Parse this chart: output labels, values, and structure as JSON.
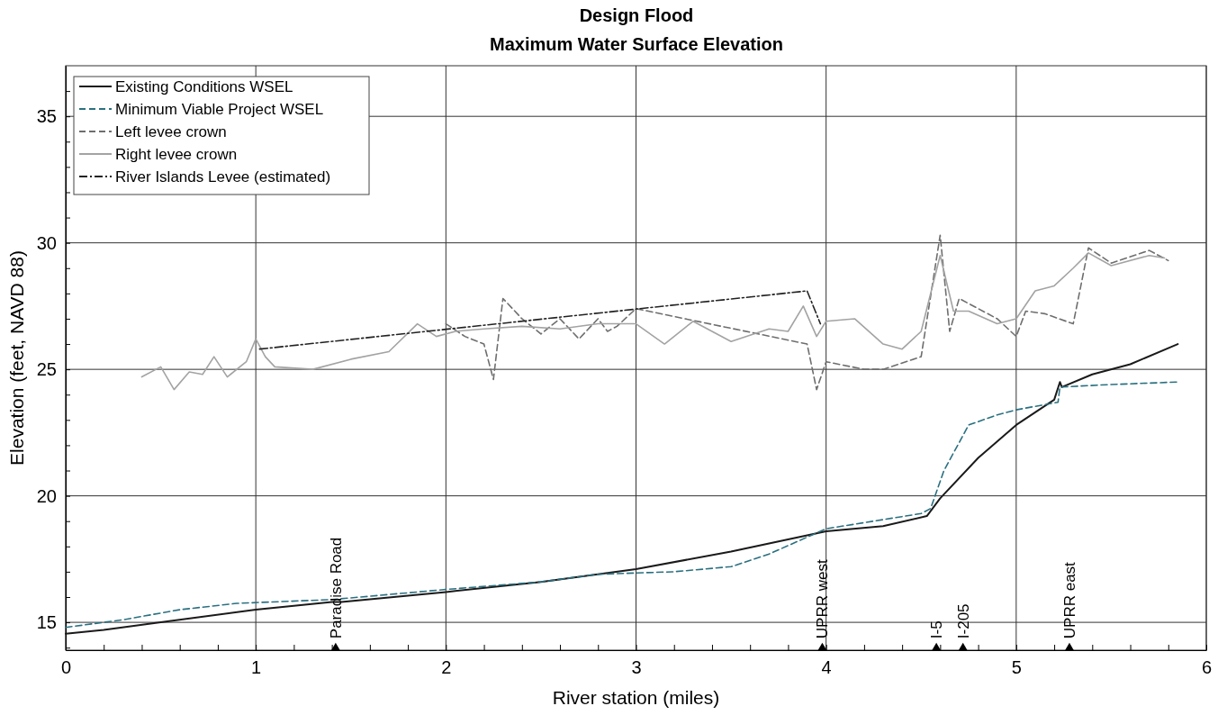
{
  "chart_data": {
    "type": "line",
    "title": "Design Flood",
    "subtitle": "Maximum Water Surface Elevation",
    "xlabel": "River station (miles)",
    "ylabel": "Elevation (feet, NAVD 88)",
    "xlim": [
      0,
      6
    ],
    "ylim": [
      13.9,
      37
    ],
    "xticks": [
      0,
      {
        "value": 0.2,
        "label": null
      },
      {
        "value": 0.4,
        "label": null
      },
      {
        "value": 0.6,
        "label": null
      },
      {
        "value": 0.8,
        "label": null
      },
      1,
      {
        "value": 1.2,
        "label": null
      },
      {
        "value": 1.4,
        "label": null
      },
      {
        "value": 1.6,
        "label": null
      },
      {
        "value": 1.8,
        "label": null
      },
      2,
      {
        "value": 2.2,
        "label": null
      },
      {
        "value": 2.4,
        "label": null
      },
      {
        "value": 2.6,
        "label": null
      },
      {
        "value": 2.8,
        "label": null
      },
      3,
      {
        "value": 3.2,
        "label": null
      },
      {
        "value": 3.4,
        "label": null
      },
      {
        "value": 3.6,
        "label": null
      },
      {
        "value": 3.8,
        "label": null
      },
      4,
      {
        "value": 4.2,
        "label": null
      },
      {
        "value": 4.4,
        "label": null
      },
      {
        "value": 4.6,
        "label": null
      },
      {
        "value": 4.8,
        "label": null
      },
      5,
      {
        "value": 5.2,
        "label": null
      },
      {
        "value": 5.4,
        "label": null
      },
      {
        "value": 5.6,
        "label": null
      },
      {
        "value": 5.8,
        "label": null
      },
      6
    ],
    "yticks": [
      {
        "value": 14,
        "label": null
      },
      15,
      {
        "value": 16,
        "label": null
      },
      {
        "value": 17,
        "label": null
      },
      {
        "value": 18,
        "label": null
      },
      {
        "value": 19,
        "label": null
      },
      20,
      {
        "value": 21,
        "label": null
      },
      {
        "value": 22,
        "label": null
      },
      {
        "value": 23,
        "label": null
      },
      {
        "value": 24,
        "label": null
      },
      25,
      {
        "value": 26,
        "label": null
      },
      {
        "value": 27,
        "label": null
      },
      {
        "value": 28,
        "label": null
      },
      {
        "value": 29,
        "label": null
      },
      30,
      {
        "value": 31,
        "label": null
      },
      {
        "value": 32,
        "label": null
      },
      {
        "value": 33,
        "label": null
      },
      {
        "value": 34,
        "label": null
      },
      35,
      {
        "value": 36,
        "label": null
      }
    ],
    "grid": true,
    "legend": "top left",
    "marker": "none",
    "series": [
      {
        "name": "Existing Conditions WSEL",
        "color": "#1a1a1a",
        "line_style": "solid",
        "x": [
          0,
          0.2,
          0.5,
          1.0,
          1.4,
          1.45,
          2.0,
          2.5,
          3.0,
          3.5,
          4.0,
          4.3,
          4.53,
          4.6,
          4.8,
          5.0,
          5.2,
          5.23,
          5.24,
          5.4,
          5.6,
          5.85
        ],
        "values": [
          14.55,
          14.7,
          15.0,
          15.5,
          15.8,
          15.8,
          16.2,
          16.6,
          17.1,
          17.8,
          18.6,
          18.8,
          19.2,
          19.9,
          21.5,
          22.8,
          23.8,
          24.5,
          24.3,
          24.8,
          25.2,
          26.0
        ]
      },
      {
        "name": "Minimum Viable Project WSEL",
        "color": "#2a7080",
        "line_style": "dashed",
        "x": [
          0,
          0.3,
          0.6,
          0.9,
          1.4,
          2.0,
          2.5,
          2.8,
          3.2,
          3.5,
          3.7,
          4.0,
          4.5,
          4.55,
          4.62,
          4.75,
          4.9,
          5.0,
          5.22,
          5.23,
          5.5,
          5.85
        ],
        "values": [
          14.8,
          15.1,
          15.5,
          15.75,
          15.9,
          16.3,
          16.6,
          16.9,
          17.0,
          17.2,
          17.7,
          18.7,
          19.3,
          19.5,
          21.0,
          22.8,
          23.2,
          23.4,
          23.7,
          24.3,
          24.4,
          24.5
        ]
      },
      {
        "name": "Left levee crown",
        "color": "#6e6e6e",
        "line_style": "dashed",
        "x": [
          2.0,
          2.1,
          2.2,
          2.25,
          2.3,
          2.4,
          2.5,
          2.6,
          2.7,
          2.8,
          2.85,
          2.9,
          3.0,
          3.9,
          3.95,
          4.0,
          4.2,
          4.3,
          4.5,
          4.6,
          4.65,
          4.7,
          4.9,
          5.0,
          5.05,
          5.15,
          5.3,
          5.38,
          5.5,
          5.7,
          5.8
        ],
        "values": [
          26.8,
          26.3,
          26.0,
          24.6,
          27.8,
          27.0,
          26.4,
          27.0,
          26.2,
          27.0,
          26.5,
          26.7,
          27.4,
          26.0,
          24.2,
          25.3,
          25.0,
          25.0,
          25.5,
          30.3,
          26.5,
          27.8,
          27.0,
          26.3,
          27.3,
          27.2,
          26.8,
          29.8,
          29.2,
          29.7,
          29.3
        ]
      },
      {
        "name": "Right levee crown",
        "color": "#a3a3a3",
        "line_style": "solid",
        "x": [
          0.4,
          0.5,
          0.57,
          0.65,
          0.72,
          0.78,
          0.85,
          0.95,
          1.0,
          1.05,
          1.1,
          1.3,
          1.5,
          1.7,
          1.85,
          1.95,
          2.05,
          2.2,
          2.4,
          2.6,
          2.8,
          3.0,
          3.15,
          3.3,
          3.5,
          3.7,
          3.8,
          3.88,
          3.95,
          4.0,
          4.15,
          4.3,
          4.4,
          4.5,
          4.6,
          4.67,
          4.75,
          4.9,
          5.0,
          5.1,
          5.2,
          5.3,
          5.38,
          5.5,
          5.7,
          5.78
        ],
        "values": [
          24.7,
          25.1,
          24.2,
          24.9,
          24.8,
          25.5,
          24.7,
          25.3,
          26.2,
          25.5,
          25.1,
          25.0,
          25.4,
          25.7,
          26.8,
          26.3,
          26.5,
          26.6,
          26.7,
          26.6,
          26.8,
          26.8,
          26.0,
          26.9,
          26.1,
          26.6,
          26.5,
          27.5,
          26.3,
          26.9,
          27.0,
          26.0,
          25.8,
          26.5,
          29.5,
          27.3,
          27.3,
          26.8,
          27.0,
          28.1,
          28.3,
          29.0,
          29.6,
          29.1,
          29.5,
          29.4
        ]
      },
      {
        "name": "River Islands Levee (estimated)",
        "color": "#222222",
        "line_style": "dashdot",
        "x": [
          1.02,
          3.9,
          3.97
        ],
        "values": [
          25.8,
          28.1,
          26.8
        ]
      },
      {
        "type": "scatter",
        "color": "#000000",
        "marker": "triangle",
        "x": [
          1.42,
          3.98,
          4.58,
          4.72,
          5.28
        ],
        "values": [
          14.0,
          14.0,
          14.0,
          14.0,
          14.0
        ],
        "value_labels": [
          "Paradise Road",
          "UPRR west",
          "I-5",
          "I-205",
          "UPRR east"
        ]
      }
    ]
  }
}
